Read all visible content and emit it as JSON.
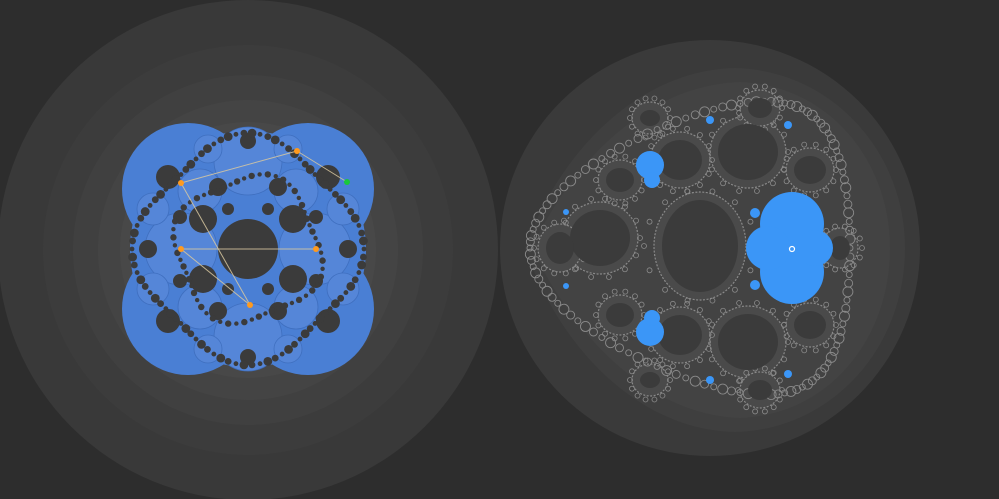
{
  "app": {
    "title": "",
    "background_color": "#2d2d2d"
  },
  "left_panel": {
    "name": "parameter-space",
    "limit_set_color": "#4a7fd4",
    "gap_color": "#3b3b3b",
    "handle_color": "#ff9a1f",
    "active_handle_color": "#19c83a",
    "polyline_color": "#d8c8a0",
    "handles": [
      {
        "name": "handle-top-left",
        "role": "vertex"
      },
      {
        "name": "handle-top-right",
        "role": "vertex"
      },
      {
        "name": "handle-right-edge",
        "role": "active"
      },
      {
        "name": "handle-mid-left",
        "role": "vertex"
      },
      {
        "name": "handle-mid-right",
        "role": "vertex"
      },
      {
        "name": "handle-bottom",
        "role": "vertex"
      }
    ]
  },
  "right_panel": {
    "name": "dynamical-plane",
    "set_color": "#3b96f7",
    "filament_color": "#8a8a8a",
    "marker_color": "#ffffff"
  }
}
